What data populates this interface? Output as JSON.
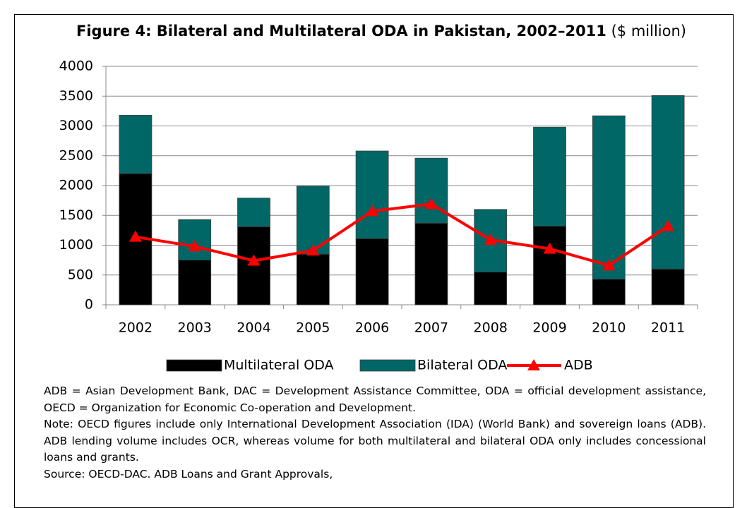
{
  "chart_data": {
    "type": "stacked-bar-line",
    "title": "Figure 4: Bilateral and Multilateral ODA in Pakistan, 2002–2011",
    "title_unit": "($ million)",
    "categories": [
      "2002",
      "2003",
      "2004",
      "2005",
      "2006",
      "2007",
      "2008",
      "2009",
      "2010",
      "2011"
    ],
    "series": [
      {
        "name": "Multilateral ODA",
        "color": "#000000",
        "kind": "bar",
        "values": [
          2200,
          750,
          1310,
          850,
          1110,
          1370,
          550,
          1320,
          430,
          600
        ]
      },
      {
        "name": "Bilateral ODA",
        "color": "#006666",
        "kind": "bar",
        "values": [
          980,
          680,
          480,
          1140,
          1470,
          1090,
          1050,
          1660,
          2740,
          2910
        ]
      },
      {
        "name": "ADB",
        "color": "#ff0000",
        "kind": "line",
        "values": [
          1140,
          980,
          740,
          910,
          1570,
          1690,
          1090,
          940,
          660,
          1320
        ]
      }
    ],
    "ylim": [
      0,
      4000
    ],
    "yticks": [
      0,
      500,
      1000,
      1500,
      2000,
      2500,
      3000,
      3500,
      4000
    ],
    "grid": true,
    "legend": "bottom",
    "notes": [
      "ADB = Asian Development Bank, DAC = Development Assistance Committee, ODA = official development assistance, OECD = Organization for Economic Co-operation and Development.",
      "Note: OECD figures include only International Development Association (IDA) (World Bank) and sovereign loans (ADB). ADB lending volume includes OCR, whereas volume for both multilateral and bilateral ODA only includes concessional loans and grants.",
      "Source: OECD-DAC. ADB Loans and Grant Approvals,"
    ]
  }
}
